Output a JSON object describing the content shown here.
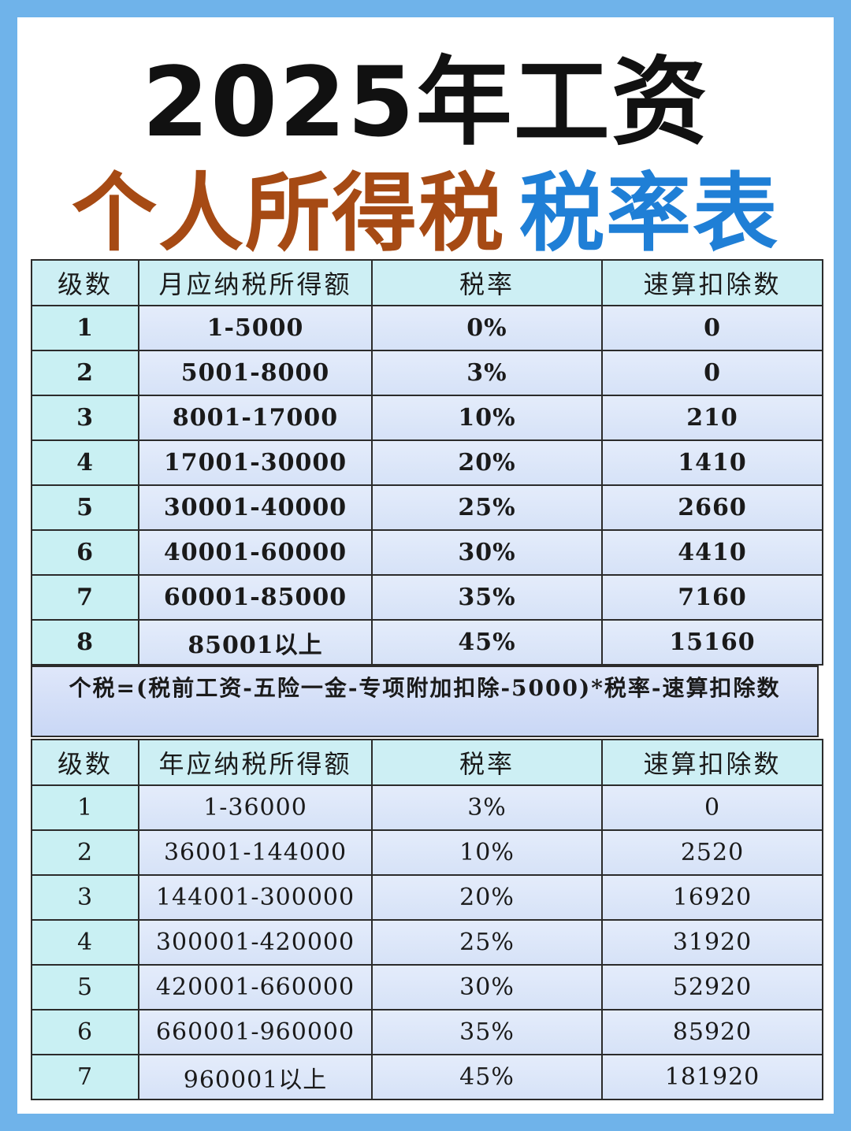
{
  "title": {
    "line1": "2025年工资",
    "line2_a": "个人所得税",
    "line2_b": "税率表"
  },
  "colors": {
    "background": "#6fb3ea",
    "title_brown": "#a64a14",
    "title_blue": "#1f7fd6",
    "header_cell": "#cdeff4",
    "level_cell": "#c9f0f3"
  },
  "monthly_table": {
    "headers": [
      "级数",
      "月应纳税所得额",
      "税率",
      "速算扣除数"
    ],
    "rows": [
      [
        "1",
        "1-5000",
        "0%",
        "0"
      ],
      [
        "2",
        "5001-8000",
        "3%",
        "0"
      ],
      [
        "3",
        "8001-17000",
        "10%",
        "210"
      ],
      [
        "4",
        "17001-30000",
        "20%",
        "1410"
      ],
      [
        "5",
        "30001-40000",
        "25%",
        "2660"
      ],
      [
        "6",
        "40001-60000",
        "30%",
        "4410"
      ],
      [
        "7",
        "60001-85000",
        "35%",
        "7160"
      ],
      [
        "8",
        "85001以上",
        "45%",
        "15160"
      ]
    ]
  },
  "formula": "个税=(税前工资-五险一金-专项附加扣除-5000)*税率-速算扣除数",
  "annual_table": {
    "headers": [
      "级数",
      "年应纳税所得额",
      "税率",
      "速算扣除数"
    ],
    "rows": [
      [
        "1",
        "1-36000",
        "3%",
        "0"
      ],
      [
        "2",
        "36001-144000",
        "10%",
        "2520"
      ],
      [
        "3",
        "144001-300000",
        "20%",
        "16920"
      ],
      [
        "4",
        "300001-420000",
        "25%",
        "31920"
      ],
      [
        "5",
        "420001-660000",
        "30%",
        "52920"
      ],
      [
        "6",
        "660001-960000",
        "35%",
        "85920"
      ],
      [
        "7",
        "960001以上",
        "45%",
        "181920"
      ]
    ]
  }
}
